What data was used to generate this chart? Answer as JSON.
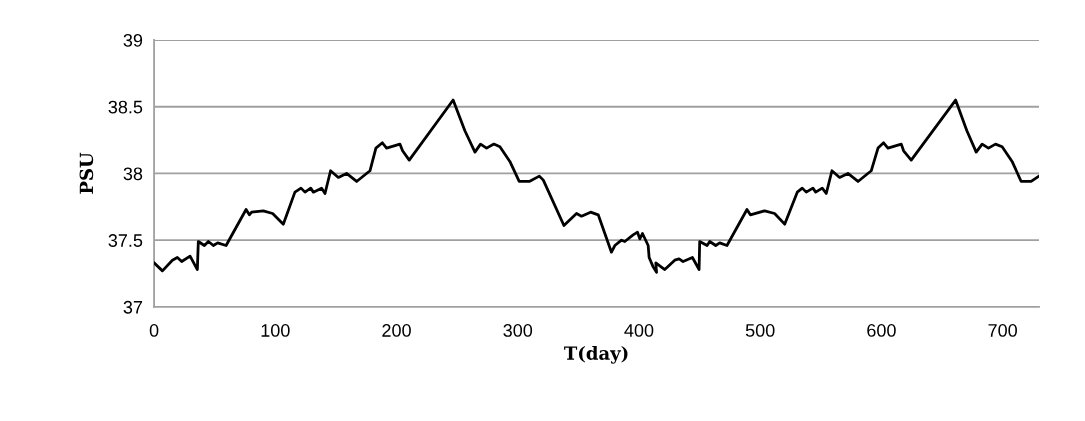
{
  "chart_data": {
    "type": "line",
    "xlabel": "T(day)",
    "ylabel": "PSU",
    "x": [
      0,
      6.9,
      15.1,
      19.2,
      22.8,
      29.7,
      35.7,
      36.5,
      41.5,
      44.8,
      48.9,
      52.5,
      59.4,
      75.9,
      78.6,
      80.5,
      90.1,
      97.8,
      106.6,
      116.2,
      121.2,
      124.5,
      129.2,
      131.4,
      138.2,
      141,
      145.6,
      152,
      158.8,
      167.1,
      178.1,
      183,
      188.3,
      191.8,
      202.8,
      205,
      210.5,
      246.7,
      256.4,
      264.7,
      269.3,
      274.3,
      280.3,
      285.3,
      293.5,
      301.2,
      309.5,
      317.8,
      321.1,
      338.1,
      348.5,
      352.6,
      360.1,
      366.4,
      377.3,
      380.1,
      385.6,
      388.3,
      395.2,
      398.8,
      400.7,
      402.9,
      407.6,
      408.4,
      411.7,
      414.5,
      413.9,
      421.3,
      429.5,
      433.1,
      436.4,
      444.1,
      449.6,
      450.1,
      456.2,
      458.4,
      463.3,
      466.6,
      472.6,
      489.1,
      491.9,
      503.7,
      511.9,
      520.2,
      530.6,
      534.7,
      538,
      543.5,
      545.8,
      551.2,
      554.5,
      559.2,
      565.5,
      572.4,
      580.7,
      591.6,
      597.2,
      601.8,
      605.4,
      616.4,
      618.3,
      624.6,
      661.2,
      670.5,
      678.2,
      683.1,
      688.3,
      694.1,
      699.6,
      707.8,
      715.3,
      723.5,
      730
    ],
    "series": [
      {
        "color": "#000000",
        "values": [
          37.33,
          37.27,
          37.35,
          37.37,
          37.34,
          37.38,
          37.28,
          37.49,
          37.46,
          37.49,
          37.46,
          37.48,
          37.46,
          37.73,
          37.69,
          37.71,
          37.72,
          37.7,
          37.62,
          37.86,
          37.89,
          37.86,
          37.89,
          37.86,
          37.89,
          37.85,
          38.02,
          37.97,
          38.0,
          37.94,
          38.02,
          38.19,
          38.23,
          38.19,
          38.22,
          38.17,
          38.1,
          38.55,
          38.32,
          38.16,
          38.22,
          38.19,
          38.22,
          38.2,
          38.09,
          37.94,
          37.94,
          37.98,
          37.95,
          37.61,
          37.7,
          37.68,
          37.71,
          37.69,
          37.41,
          37.46,
          37.5,
          37.49,
          37.54,
          37.56,
          37.51,
          37.55,
          37.46,
          37.37,
          37.3,
          37.26,
          37.33,
          37.28,
          37.35,
          37.36,
          37.34,
          37.37,
          37.28,
          37.49,
          37.46,
          37.49,
          37.46,
          37.48,
          37.46,
          37.73,
          37.69,
          37.72,
          37.7,
          37.62,
          37.86,
          37.89,
          37.86,
          37.89,
          37.86,
          37.89,
          37.85,
          38.02,
          37.97,
          38.0,
          37.94,
          38.02,
          38.19,
          38.23,
          38.19,
          38.22,
          38.17,
          38.1,
          38.55,
          38.32,
          38.16,
          38.22,
          38.19,
          38.22,
          38.2,
          38.09,
          37.94,
          37.94,
          37.98
        ]
      }
    ],
    "xlim": [
      0,
      730
    ],
    "xticks": [
      0,
      100,
      200,
      300,
      400,
      500,
      600,
      700
    ],
    "ylim": [
      37,
      39
    ],
    "yticks": [
      37,
      {
        "value": 37.5,
        "label": "37.5"
      },
      38,
      {
        "value": 38.5,
        "label": "38.5"
      },
      39
    ],
    "grid": "y",
    "legend": false,
    "marker": "none",
    "line_style": "solid"
  }
}
